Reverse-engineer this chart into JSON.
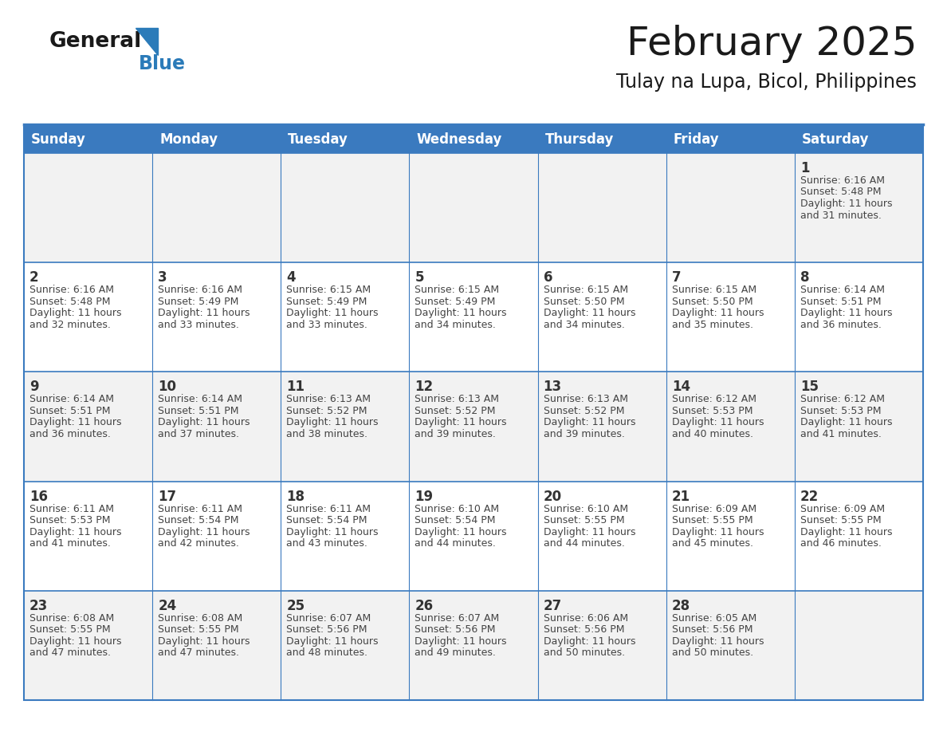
{
  "title": "February 2025",
  "subtitle": "Tulay na Lupa, Bicol, Philippines",
  "header_bg": "#3a7abf",
  "header_text_color": "#ffffff",
  "day_names": [
    "Sunday",
    "Monday",
    "Tuesday",
    "Wednesday",
    "Thursday",
    "Friday",
    "Saturday"
  ],
  "even_row_bg": "#f2f2f2",
  "odd_row_bg": "#ffffff",
  "cell_border_color": "#3a7abf",
  "text_color": "#444444",
  "day_number_color": "#333333",
  "logo_general_color": "#1a1a1a",
  "logo_blue_color": "#2b7bb9",
  "calendar_data": [
    [
      {
        "day": 0,
        "sunrise": "",
        "sunset": "",
        "daylight": ""
      },
      {
        "day": 0,
        "sunrise": "",
        "sunset": "",
        "daylight": ""
      },
      {
        "day": 0,
        "sunrise": "",
        "sunset": "",
        "daylight": ""
      },
      {
        "day": 0,
        "sunrise": "",
        "sunset": "",
        "daylight": ""
      },
      {
        "day": 0,
        "sunrise": "",
        "sunset": "",
        "daylight": ""
      },
      {
        "day": 0,
        "sunrise": "",
        "sunset": "",
        "daylight": ""
      },
      {
        "day": 1,
        "sunrise": "6:16 AM",
        "sunset": "5:48 PM",
        "daylight": "11 hours and 31 minutes."
      }
    ],
    [
      {
        "day": 2,
        "sunrise": "6:16 AM",
        "sunset": "5:48 PM",
        "daylight": "11 hours and 32 minutes."
      },
      {
        "day": 3,
        "sunrise": "6:16 AM",
        "sunset": "5:49 PM",
        "daylight": "11 hours and 33 minutes."
      },
      {
        "day": 4,
        "sunrise": "6:15 AM",
        "sunset": "5:49 PM",
        "daylight": "11 hours and 33 minutes."
      },
      {
        "day": 5,
        "sunrise": "6:15 AM",
        "sunset": "5:49 PM",
        "daylight": "11 hours and 34 minutes."
      },
      {
        "day": 6,
        "sunrise": "6:15 AM",
        "sunset": "5:50 PM",
        "daylight": "11 hours and 34 minutes."
      },
      {
        "day": 7,
        "sunrise": "6:15 AM",
        "sunset": "5:50 PM",
        "daylight": "11 hours and 35 minutes."
      },
      {
        "day": 8,
        "sunrise": "6:14 AM",
        "sunset": "5:51 PM",
        "daylight": "11 hours and 36 minutes."
      }
    ],
    [
      {
        "day": 9,
        "sunrise": "6:14 AM",
        "sunset": "5:51 PM",
        "daylight": "11 hours and 36 minutes."
      },
      {
        "day": 10,
        "sunrise": "6:14 AM",
        "sunset": "5:51 PM",
        "daylight": "11 hours and 37 minutes."
      },
      {
        "day": 11,
        "sunrise": "6:13 AM",
        "sunset": "5:52 PM",
        "daylight": "11 hours and 38 minutes."
      },
      {
        "day": 12,
        "sunrise": "6:13 AM",
        "sunset": "5:52 PM",
        "daylight": "11 hours and 39 minutes."
      },
      {
        "day": 13,
        "sunrise": "6:13 AM",
        "sunset": "5:52 PM",
        "daylight": "11 hours and 39 minutes."
      },
      {
        "day": 14,
        "sunrise": "6:12 AM",
        "sunset": "5:53 PM",
        "daylight": "11 hours and 40 minutes."
      },
      {
        "day": 15,
        "sunrise": "6:12 AM",
        "sunset": "5:53 PM",
        "daylight": "11 hours and 41 minutes."
      }
    ],
    [
      {
        "day": 16,
        "sunrise": "6:11 AM",
        "sunset": "5:53 PM",
        "daylight": "11 hours and 41 minutes."
      },
      {
        "day": 17,
        "sunrise": "6:11 AM",
        "sunset": "5:54 PM",
        "daylight": "11 hours and 42 minutes."
      },
      {
        "day": 18,
        "sunrise": "6:11 AM",
        "sunset": "5:54 PM",
        "daylight": "11 hours and 43 minutes."
      },
      {
        "day": 19,
        "sunrise": "6:10 AM",
        "sunset": "5:54 PM",
        "daylight": "11 hours and 44 minutes."
      },
      {
        "day": 20,
        "sunrise": "6:10 AM",
        "sunset": "5:55 PM",
        "daylight": "11 hours and 44 minutes."
      },
      {
        "day": 21,
        "sunrise": "6:09 AM",
        "sunset": "5:55 PM",
        "daylight": "11 hours and 45 minutes."
      },
      {
        "day": 22,
        "sunrise": "6:09 AM",
        "sunset": "5:55 PM",
        "daylight": "11 hours and 46 minutes."
      }
    ],
    [
      {
        "day": 23,
        "sunrise": "6:08 AM",
        "sunset": "5:55 PM",
        "daylight": "11 hours and 47 minutes."
      },
      {
        "day": 24,
        "sunrise": "6:08 AM",
        "sunset": "5:55 PM",
        "daylight": "11 hours and 47 minutes."
      },
      {
        "day": 25,
        "sunrise": "6:07 AM",
        "sunset": "5:56 PM",
        "daylight": "11 hours and 48 minutes."
      },
      {
        "day": 26,
        "sunrise": "6:07 AM",
        "sunset": "5:56 PM",
        "daylight": "11 hours and 49 minutes."
      },
      {
        "day": 27,
        "sunrise": "6:06 AM",
        "sunset": "5:56 PM",
        "daylight": "11 hours and 50 minutes."
      },
      {
        "day": 28,
        "sunrise": "6:05 AM",
        "sunset": "5:56 PM",
        "daylight": "11 hours and 50 minutes."
      },
      {
        "day": 0,
        "sunrise": "",
        "sunset": "",
        "daylight": ""
      }
    ]
  ]
}
